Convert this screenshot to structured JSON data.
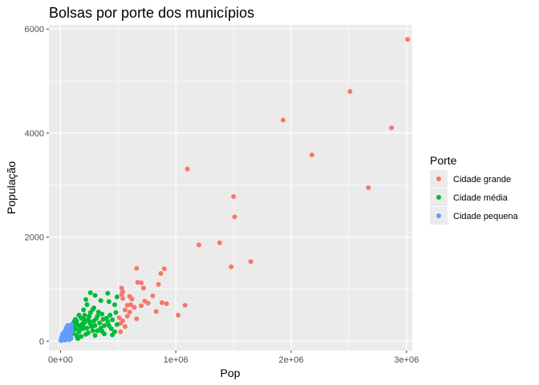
{
  "chart_data": {
    "type": "scatter",
    "title": "Bolsas por porte dos municípios",
    "xlabel": "Pop",
    "ylabel": "População",
    "xlim": [
      -100000,
      3050000
    ],
    "ylim": [
      -180,
      6080
    ],
    "x_ticks": [
      {
        "value": 0,
        "label": "0e+00"
      },
      {
        "value": 1000000,
        "label": "1e+06"
      },
      {
        "value": 2000000,
        "label": "2e+06"
      },
      {
        "value": 3000000,
        "label": "3e+06"
      }
    ],
    "y_ticks": [
      {
        "value": 0,
        "label": "0"
      },
      {
        "value": 2000,
        "label": "2000"
      },
      {
        "value": 4000,
        "label": "4000"
      },
      {
        "value": 6000,
        "label": "6000"
      }
    ],
    "grid": true,
    "legend": {
      "title": "Porte",
      "position": "right"
    },
    "series": [
      {
        "name": "Cidade grande",
        "color": "#F8766D",
        "points": [
          [
            3010000,
            5800
          ],
          [
            2510000,
            4800
          ],
          [
            2870000,
            4100
          ],
          [
            1930000,
            4250
          ],
          [
            2180000,
            3580
          ],
          [
            2670000,
            2950
          ],
          [
            1100000,
            3310
          ],
          [
            1500000,
            2780
          ],
          [
            1510000,
            2390
          ],
          [
            1380000,
            1890
          ],
          [
            1200000,
            1850
          ],
          [
            1650000,
            1530
          ],
          [
            1480000,
            1430
          ],
          [
            660000,
            1400
          ],
          [
            900000,
            1390
          ],
          [
            870000,
            1300
          ],
          [
            670000,
            1130
          ],
          [
            700000,
            1120
          ],
          [
            720000,
            1020
          ],
          [
            530000,
            1020
          ],
          [
            540000,
            950
          ],
          [
            850000,
            1090
          ],
          [
            600000,
            860
          ],
          [
            620000,
            810
          ],
          [
            800000,
            870
          ],
          [
            730000,
            770
          ],
          [
            880000,
            740
          ],
          [
            920000,
            720
          ],
          [
            1080000,
            690
          ],
          [
            700000,
            680
          ],
          [
            580000,
            690
          ],
          [
            560000,
            600
          ],
          [
            830000,
            570
          ],
          [
            660000,
            430
          ],
          [
            1020000,
            500
          ],
          [
            580000,
            480
          ],
          [
            520000,
            340
          ],
          [
            560000,
            280
          ],
          [
            520000,
            180
          ],
          [
            540000,
            820
          ],
          [
            640000,
            650
          ],
          [
            610000,
            700
          ],
          [
            510000,
            450
          ],
          [
            600000,
            560
          ],
          [
            530000,
            900
          ],
          [
            760000,
            730
          ],
          [
            540000,
            390
          ]
        ]
      },
      {
        "name": "Cidade média",
        "color": "#00BA38",
        "points": [
          [
            260000,
            930
          ],
          [
            410000,
            920
          ],
          [
            300000,
            880
          ],
          [
            490000,
            850
          ],
          [
            470000,
            700
          ],
          [
            420000,
            760
          ],
          [
            350000,
            780
          ],
          [
            230000,
            700
          ],
          [
            200000,
            600
          ],
          [
            280000,
            610
          ],
          [
            480000,
            550
          ],
          [
            160000,
            500
          ],
          [
            430000,
            500
          ],
          [
            360000,
            520
          ],
          [
            290000,
            640
          ],
          [
            220000,
            800
          ],
          [
            180000,
            440
          ],
          [
            310000,
            430
          ],
          [
            400000,
            440
          ],
          [
            450000,
            410
          ],
          [
            250000,
            480
          ],
          [
            130000,
            420
          ],
          [
            120000,
            380
          ],
          [
            210000,
            360
          ],
          [
            340000,
            350
          ],
          [
            490000,
            320
          ],
          [
            380000,
            300
          ],
          [
            150000,
            310
          ],
          [
            270000,
            280
          ],
          [
            110000,
            270
          ],
          [
            200000,
            240
          ],
          [
            440000,
            240
          ],
          [
            320000,
            200
          ],
          [
            90000,
            200
          ],
          [
            160000,
            180
          ],
          [
            240000,
            160
          ],
          [
            100000,
            140
          ],
          [
            140000,
            110
          ],
          [
            300000,
            110
          ],
          [
            180000,
            90
          ],
          [
            380000,
            140
          ],
          [
            470000,
            180
          ],
          [
            260000,
            330
          ],
          [
            230000,
            250
          ],
          [
            170000,
            280
          ],
          [
            130000,
            230
          ],
          [
            120000,
            330
          ],
          [
            190000,
            330
          ],
          [
            350000,
            250
          ],
          [
            410000,
            370
          ],
          [
            290000,
            390
          ],
          [
            100000,
            300
          ],
          [
            280000,
            200
          ],
          [
            220000,
            130
          ],
          [
            150000,
            50
          ],
          [
            90000,
            60
          ],
          [
            200000,
            420
          ],
          [
            330000,
            560
          ],
          [
            260000,
            550
          ],
          [
            420000,
            300
          ],
          [
            360000,
            190
          ],
          [
            450000,
            120
          ],
          [
            250000,
            380
          ],
          [
            110000,
            160
          ],
          [
            210000,
            500
          ],
          [
            140000,
            380
          ],
          [
            170000,
            220
          ],
          [
            300000,
            300
          ],
          [
            370000,
            420
          ],
          [
            320000,
            480
          ],
          [
            240000,
            420
          ],
          [
            195000,
            290
          ]
        ]
      },
      {
        "name": "Cidade pequena",
        "color": "#619CFF",
        "points": [
          [
            5000,
            10
          ],
          [
            10000,
            30
          ],
          [
            15000,
            60
          ],
          [
            20000,
            20
          ],
          [
            25000,
            90
          ],
          [
            30000,
            40
          ],
          [
            35000,
            120
          ],
          [
            40000,
            70
          ],
          [
            45000,
            150
          ],
          [
            50000,
            30
          ],
          [
            55000,
            180
          ],
          [
            60000,
            100
          ],
          [
            65000,
            60
          ],
          [
            70000,
            210
          ],
          [
            75000,
            140
          ],
          [
            80000,
            90
          ],
          [
            85000,
            240
          ],
          [
            90000,
            50
          ],
          [
            95000,
            170
          ],
          [
            20000,
            110
          ],
          [
            30000,
            160
          ],
          [
            45000,
            80
          ],
          [
            60000,
            230
          ],
          [
            70000,
            40
          ],
          [
            80000,
            190
          ],
          [
            90000,
            270
          ],
          [
            12000,
            80
          ],
          [
            40000,
            20
          ],
          [
            55000,
            130
          ],
          [
            65000,
            170
          ],
          [
            75000,
            250
          ],
          [
            85000,
            110
          ],
          [
            8000,
            50
          ],
          [
            18000,
            140
          ],
          [
            28000,
            100
          ],
          [
            38000,
            190
          ],
          [
            48000,
            220
          ],
          [
            58000,
            60
          ],
          [
            68000,
            130
          ],
          [
            78000,
            30
          ],
          [
            88000,
            150
          ],
          [
            98000,
            200
          ],
          [
            95000,
            320
          ],
          [
            3000,
            20
          ],
          [
            22000,
            70
          ],
          [
            52000,
            260
          ],
          [
            72000,
            180
          ],
          [
            82000,
            60
          ],
          [
            62000,
            300
          ],
          [
            42000,
            120
          ]
        ]
      }
    ]
  }
}
